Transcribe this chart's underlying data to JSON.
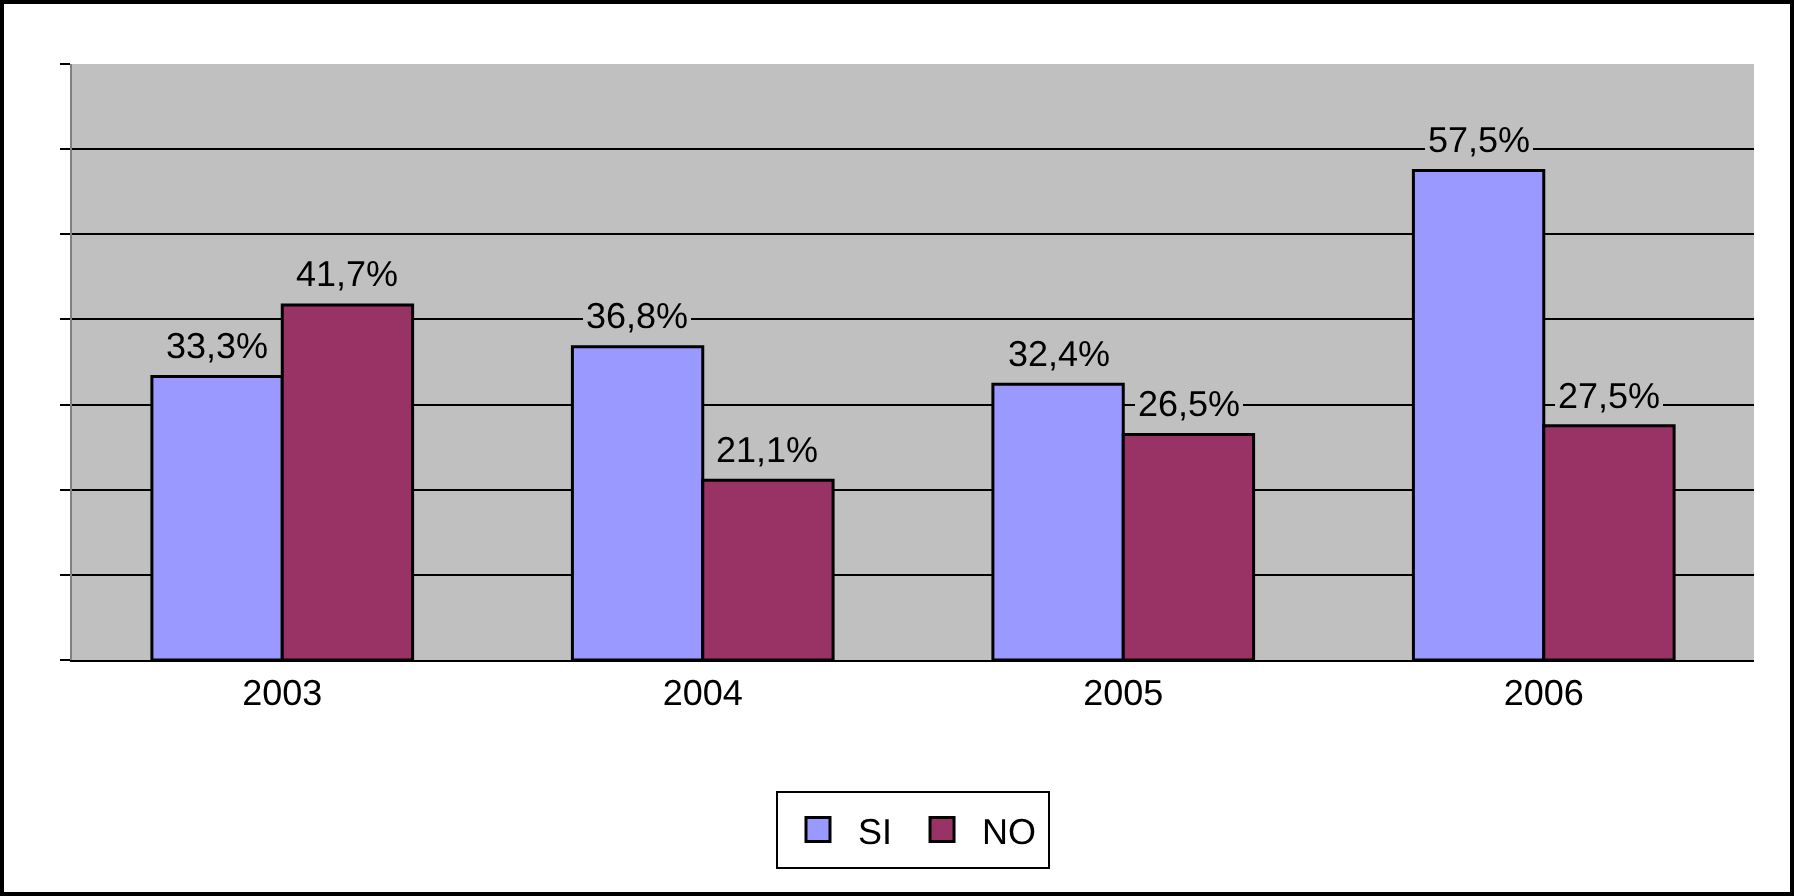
{
  "chart_data": {
    "type": "bar",
    "categories": [
      "2003",
      "2004",
      "2005",
      "2006"
    ],
    "series": [
      {
        "name": "SI",
        "color": "#9999ff",
        "values": [
          33.3,
          36.8,
          32.4,
          57.5
        ],
        "value_labels": [
          "33,3%",
          "36,8%",
          "32,4%",
          "57,5%"
        ]
      },
      {
        "name": "NO",
        "color": "#993366",
        "values": [
          41.7,
          21.1,
          26.5,
          27.5
        ],
        "value_labels": [
          "41,7%",
          "21,1%",
          "26,5%",
          "27,5%"
        ]
      }
    ],
    "ylim": [
      0,
      70
    ],
    "yticks": [
      {
        "value": 0,
        "label": null
      },
      {
        "value": 10,
        "label": null
      },
      {
        "value": 20,
        "label": null
      },
      {
        "value": 30,
        "label": null
      },
      {
        "value": 40,
        "label": null
      },
      {
        "value": 50,
        "label": null
      },
      {
        "value": 60,
        "label": null
      },
      {
        "value": 70,
        "label": null
      }
    ],
    "tick_labels": "x",
    "grid": "y",
    "legend": "bottom"
  }
}
